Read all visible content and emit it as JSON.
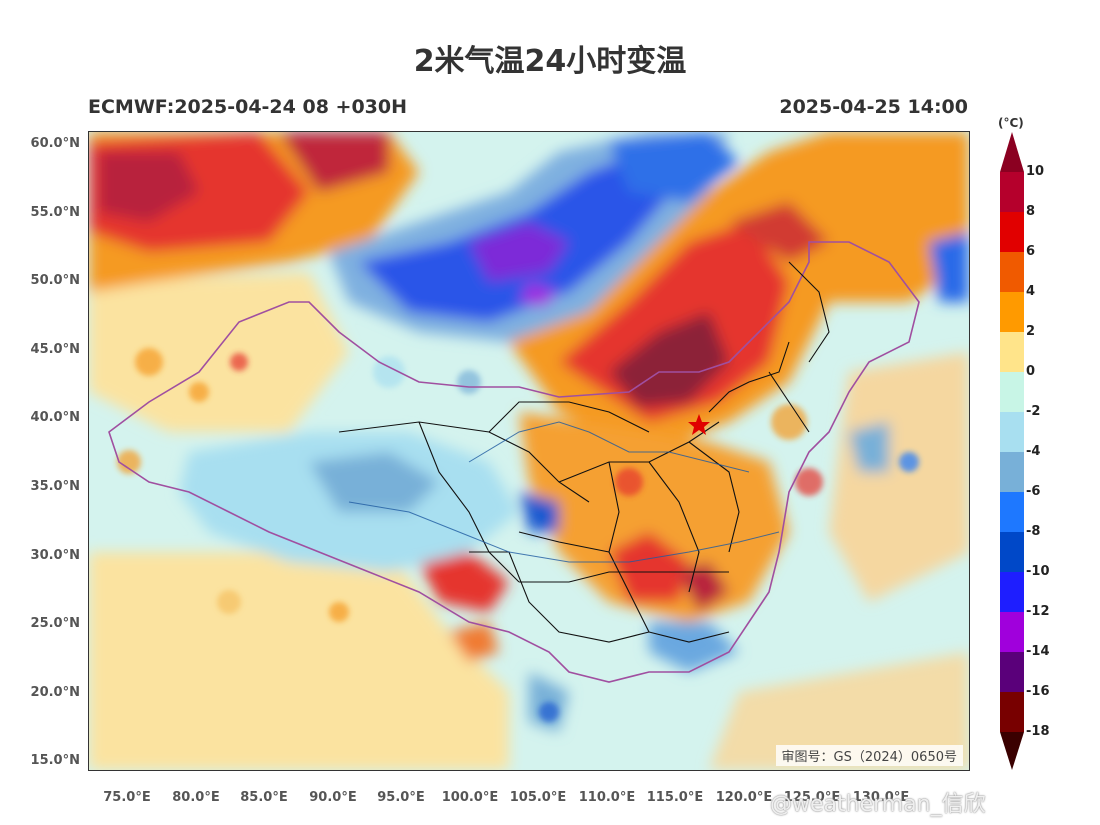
{
  "title": "2米气温24小时变温",
  "subtitle_left": "ECMWF:2025-04-24 08 +030H",
  "subtitle_right": "2025-04-25 14:00",
  "map": {
    "type": "filled contour map",
    "variable": "2m temperature 24h change",
    "region": "China and surrounding",
    "lat_ticks": [
      "60.0°N",
      "55.0°N",
      "50.0°N",
      "45.0°N",
      "40.0°N",
      "35.0°N",
      "30.0°N",
      "25.0°N",
      "20.0°N",
      "15.0°N"
    ],
    "lon_ticks": [
      "75.0°E",
      "80.0°E",
      "85.0°E",
      "90.0°E",
      "95.0°E",
      "100.0°E",
      "105.0°E",
      "110.0°E",
      "115.0°E",
      "120.0°E",
      "125.0°E",
      "130.0°E"
    ],
    "review_number": "审图号：GS（2024）0650号"
  },
  "colorbar": {
    "unit": "(°C)",
    "labels": [
      "10",
      "8",
      "6",
      "4",
      "2",
      "0",
      "-2",
      "-4",
      "-6",
      "-8",
      "-10",
      "-12",
      "-14",
      "-16",
      "-18"
    ],
    "colors": [
      "#b5002c",
      "#e10000",
      "#f05a00",
      "#ff9a00",
      "#ffe48a",
      "#c8f5e6",
      "#a8dff0",
      "#78b0d8",
      "#1e78ff",
      "#0048c8",
      "#1e1eff",
      "#a000dc",
      "#5a007a",
      "#780000"
    ],
    "top_arrow_color": "#8b0021",
    "bottom_arrow_color": "#3a0000"
  },
  "watermark": "@weatherman_信欣"
}
